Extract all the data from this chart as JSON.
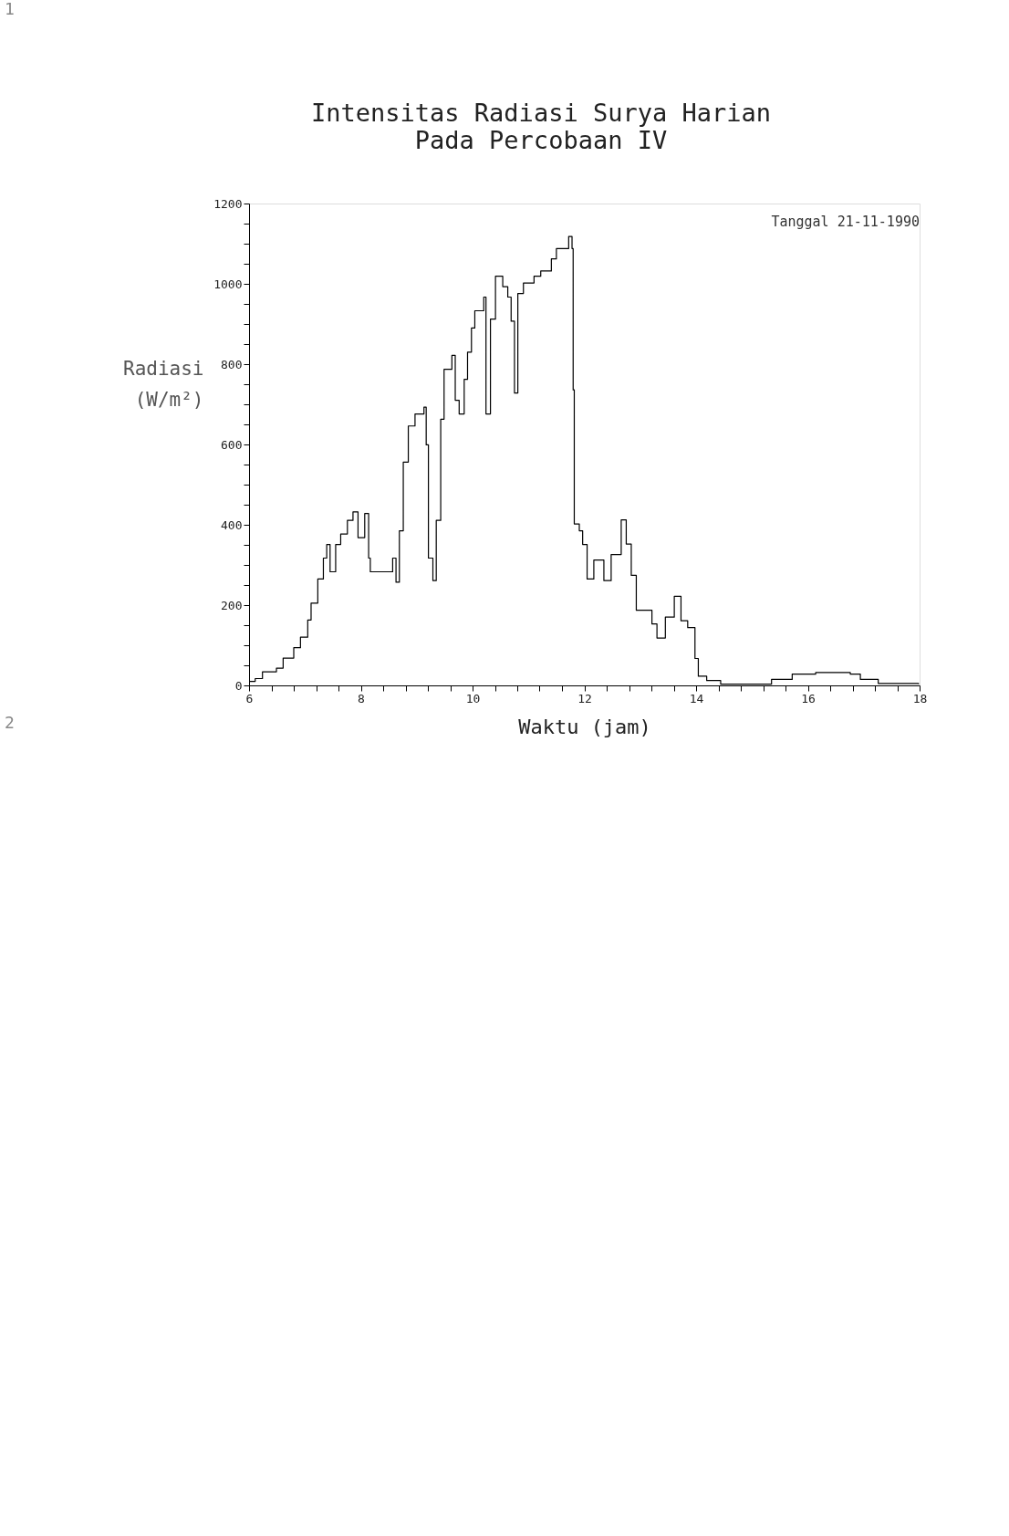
{
  "chart_data": {
    "type": "step",
    "title": [
      "Intensitas Radiasi Surya Harian",
      "Pada Percobaan IV"
    ],
    "xlabel": "Waktu (jam)",
    "ylabel": "Radiasi\n(W/m²)",
    "annotations": [
      "Tanggal 21-11-1990",
      "1",
      "2"
    ],
    "x": [
      6.0,
      6.11,
      6.24,
      6.49,
      6.61,
      6.8,
      6.92,
      7.05,
      7.11,
      7.23,
      7.33,
      7.39,
      7.45,
      7.55,
      7.64,
      7.76,
      7.86,
      7.95,
      8.07,
      8.14,
      8.17,
      8.48,
      8.57,
      8.63,
      8.69,
      8.76,
      8.85,
      8.97,
      9.13,
      9.17,
      9.21,
      9.29,
      9.35,
      9.43,
      9.49,
      9.63,
      9.69,
      9.76,
      9.85,
      9.91,
      9.98,
      10.04,
      10.2,
      10.24,
      10.32,
      10.41,
      10.54,
      10.63,
      10.69,
      10.75,
      10.81,
      10.91,
      11.1,
      11.22,
      11.41,
      11.5,
      11.72,
      11.78,
      11.8,
      11.82,
      11.91,
      11.97,
      12.05,
      12.17,
      12.35,
      12.48,
      12.66,
      12.75,
      12.84,
      12.93,
      13.21,
      13.3,
      13.45,
      13.61,
      13.73,
      13.85,
      13.98,
      14.04,
      14.19,
      14.44,
      15.29,
      15.35,
      15.72,
      16.14,
      16.76,
      16.94,
      17.26,
      17.98
    ],
    "series": [
      {
        "color": "#000000",
        "values": [
          10,
          17,
          34,
          43,
          68,
          94,
          120,
          163,
          205,
          265,
          317,
          351,
          283,
          351,
          377,
          411,
          432,
          368,
          428,
          317,
          283,
          283,
          317,
          257,
          385,
          556,
          646,
          676,
          693,
          599,
          317,
          261,
          411,
          663,
          787,
          822,
          710,
          676,
          762,
          830,
          890,
          933,
          967,
          676,
          912,
          1019,
          993,
          967,
          907,
          728,
          976,
          1002,
          1019,
          1032,
          1062,
          1088,
          1118,
          1088,
          736,
          402,
          385,
          351,
          265,
          312,
          261,
          326,
          412,
          352,
          274,
          187,
          153,
          118,
          170,
          222,
          161,
          144,
          67,
          23,
          12,
          3,
          3,
          15,
          28,
          32,
          28,
          15,
          5,
          3
        ]
      }
    ],
    "xlim": [
      6,
      18
    ],
    "xticks": [
      6,
      {
        "value": 6.4,
        "label": null
      },
      {
        "value": 6.8,
        "label": null
      },
      {
        "value": 7.2,
        "label": null
      },
      {
        "value": 7.6,
        "label": null
      },
      8,
      {
        "value": 8.4,
        "label": null
      },
      {
        "value": 8.8,
        "label": null
      },
      {
        "value": 9.2,
        "label": null
      },
      {
        "value": 9.6,
        "label": null
      },
      10,
      {
        "value": 10.4,
        "label": null
      },
      {
        "value": 10.8,
        "label": null
      },
      {
        "value": 11.2,
        "label": null
      },
      {
        "value": 11.6,
        "label": null
      },
      12,
      {
        "value": 12.4,
        "label": null
      },
      {
        "value": 12.8,
        "label": null
      },
      {
        "value": 13.2,
        "label": null
      },
      {
        "value": 13.6,
        "label": null
      },
      14,
      {
        "value": 14.4,
        "label": null
      },
      {
        "value": 14.8,
        "label": null
      },
      {
        "value": 15.2,
        "label": null
      },
      {
        "value": 15.6,
        "label": null
      },
      16,
      {
        "value": 16.4,
        "label": null
      },
      {
        "value": 16.8,
        "label": null
      },
      {
        "value": 17.2,
        "label": null
      },
      {
        "value": 17.6,
        "label": null
      },
      18
    ],
    "ylim": [
      0,
      1200
    ],
    "yticks": [
      0,
      {
        "value": 50,
        "label": null
      },
      {
        "value": 100,
        "label": null
      },
      {
        "value": 150,
        "label": null
      },
      200,
      {
        "value": 250,
        "label": null
      },
      {
        "value": 300,
        "label": null
      },
      {
        "value": 350,
        "label": null
      },
      400,
      {
        "value": 450,
        "label": null
      },
      {
        "value": 500,
        "label": null
      },
      {
        "value": 550,
        "label": null
      },
      600,
      {
        "value": 650,
        "label": null
      },
      {
        "value": 700,
        "label": null
      },
      {
        "value": 750,
        "label": null
      },
      800,
      {
        "value": 850,
        "label": null
      },
      {
        "value": 900,
        "label": null
      },
      {
        "value": 950,
        "label": null
      },
      1000,
      {
        "value": 1050,
        "label": null
      },
      {
        "value": 1100,
        "label": null
      },
      {
        "value": 1150,
        "label": null
      },
      1200
    ],
    "grid": false,
    "marker": "none",
    "line_style": "solid"
  }
}
